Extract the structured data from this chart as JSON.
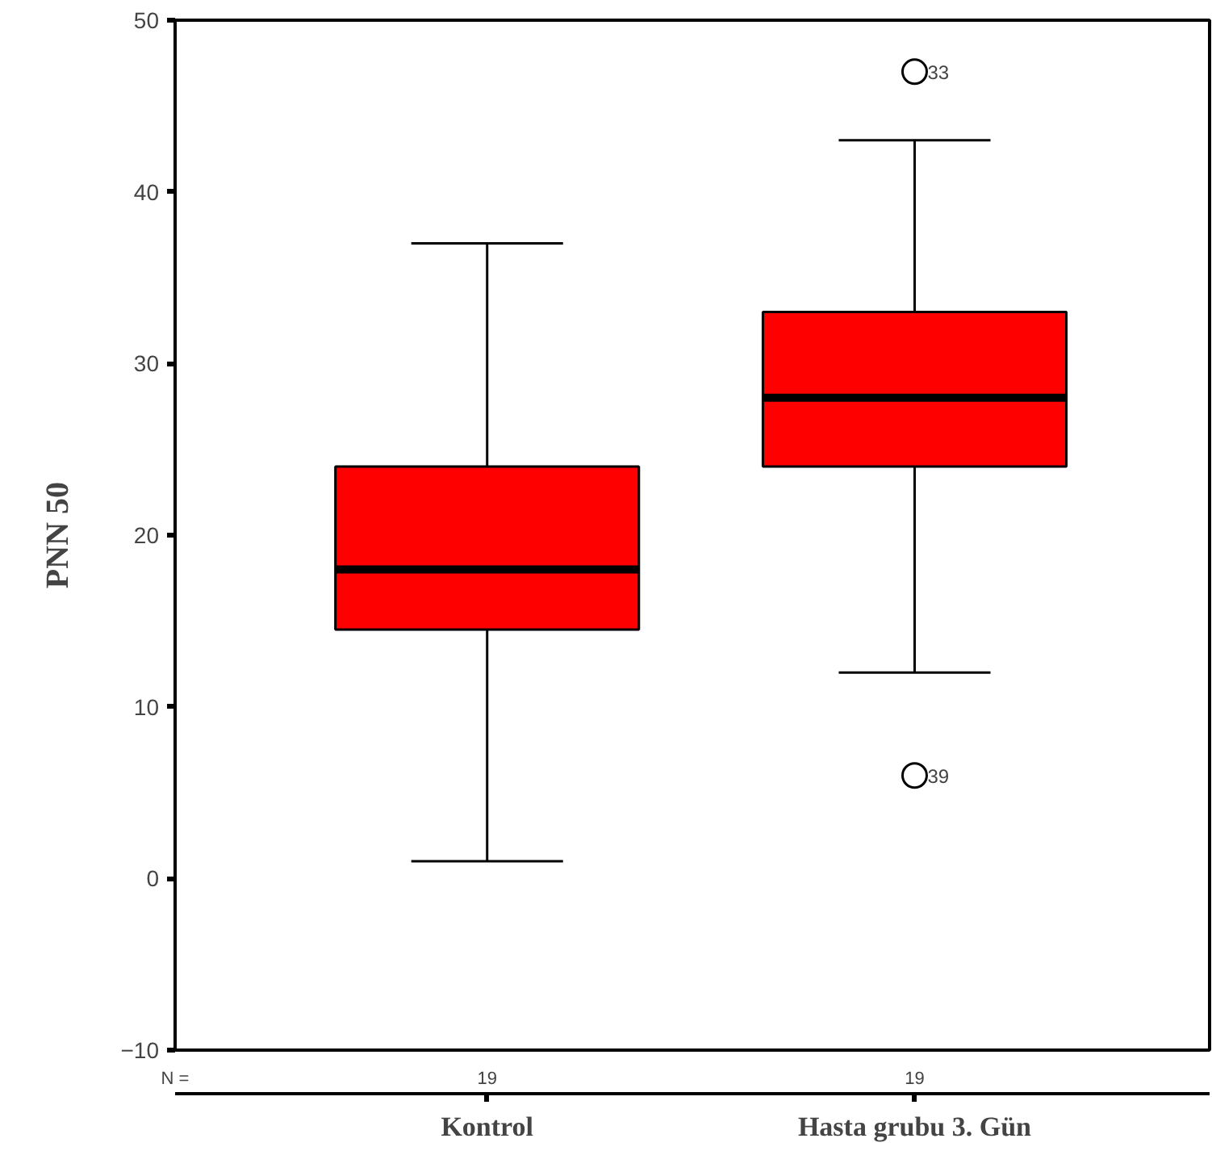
{
  "chart_data": {
    "type": "box",
    "ylabel": "PNN 50",
    "categories": [
      "Kontrol",
      "Hasta grubu 3. Gün"
    ],
    "boxes": [
      {
        "low": 1,
        "q1": 14.5,
        "median": 18,
        "q3": 24,
        "high": 37
      },
      {
        "low": 12,
        "q1": 24,
        "median": 28,
        "q3": 33,
        "high": 43,
        "outliers": [
          47,
          6
        ]
      }
    ],
    "color": "#ff0000",
    "ylim": [
      -10,
      50
    ],
    "yticks": [
      -10,
      0,
      10,
      20,
      30,
      40,
      50
    ],
    "grid": false,
    "marker": "circle",
    "annotations": [
      "33",
      "39",
      "N =",
      "19",
      "19"
    ]
  }
}
